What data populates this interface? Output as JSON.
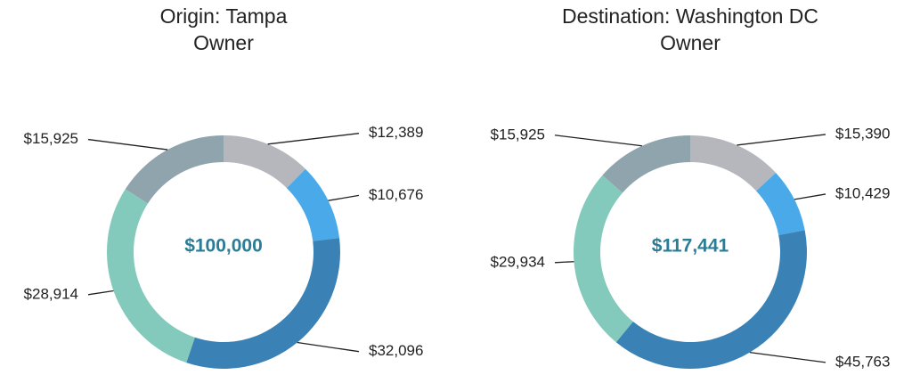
{
  "chart_data": [
    {
      "type": "donut",
      "title": "Origin: Tampa",
      "subtitle": "Owner",
      "center_label": "$100,000",
      "categories": [
        null,
        null,
        null,
        null,
        null
      ],
      "values": [
        12389,
        10676,
        32096,
        28914,
        15925
      ],
      "value_labels": [
        "$12,389",
        "$10,676",
        "$32,096",
        "$28,914",
        "$15,925"
      ],
      "colors": [
        "#b5b7bd",
        "#4aa9e9",
        "#3a82b5",
        "#83cabc",
        "#8fa4ad"
      ]
    },
    {
      "type": "donut",
      "title": "Destination: Washington DC",
      "subtitle": "Owner",
      "center_label": "$117,441",
      "categories": [
        null,
        null,
        null,
        null,
        null
      ],
      "values": [
        15390,
        10429,
        45763,
        29934,
        15925
      ],
      "value_labels": [
        "$15,390",
        "$10,429",
        "$45,763",
        "$29,934",
        "$15,925"
      ],
      "colors": [
        "#b5b7bd",
        "#4aa9e9",
        "#3a82b5",
        "#83cabc",
        "#8fa4ad"
      ]
    }
  ]
}
